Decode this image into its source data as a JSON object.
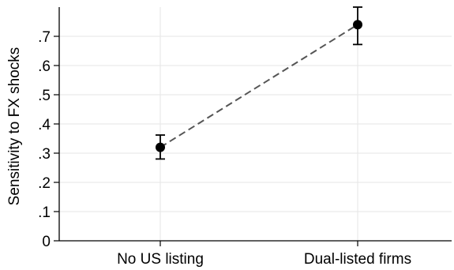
{
  "chart_data": {
    "type": "scatter",
    "title": "",
    "xlabel": "",
    "ylabel": "Sensitivity to FX shocks",
    "categories": [
      "No US listing",
      "Dual-listed firms"
    ],
    "y_ticks": [
      0,
      0.1,
      0.2,
      0.3,
      0.4,
      0.5,
      0.6,
      0.7
    ],
    "y_tick_labels": [
      "0",
      ".1",
      ".2",
      ".3",
      ".4",
      ".5",
      ".6",
      ".7"
    ],
    "ylim": [
      0,
      0.8
    ],
    "grid": true,
    "series": [
      {
        "values": [
          0.32,
          0.74
        ],
        "ci_low": [
          0.28,
          0.672
        ],
        "ci_high": [
          0.362,
          0.8
        ],
        "connector": "dashed"
      }
    ],
    "colors": {
      "point": "#000000",
      "line": "#555555",
      "grid": "#e6e6e6",
      "axis": "#000000"
    }
  }
}
